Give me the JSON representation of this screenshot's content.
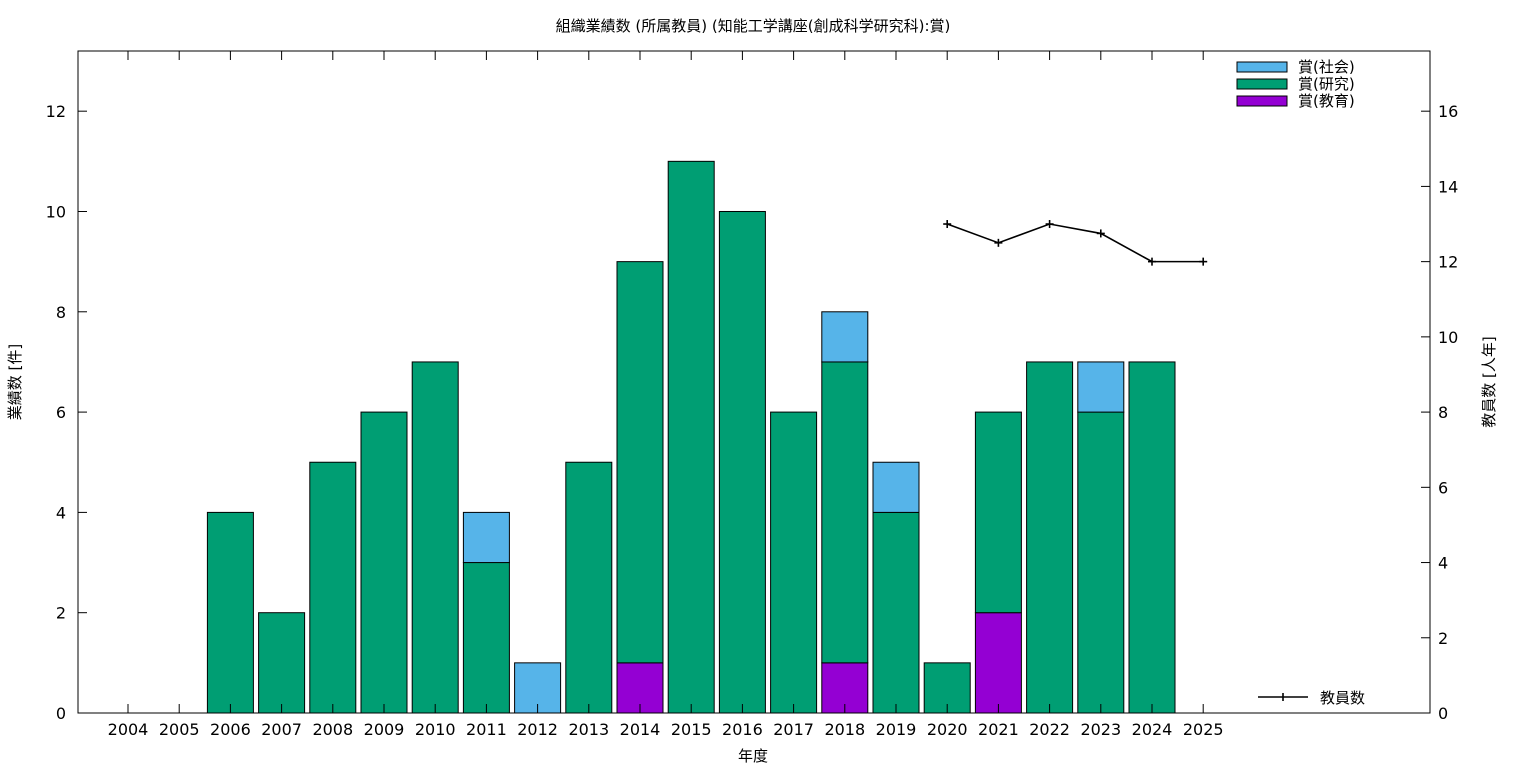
{
  "chart_data": {
    "type": "bar",
    "stacked": true,
    "title": "組織業績数 (所属教員) (知能工学講座(創成科学研究科):賞)",
    "xlabel": "年度",
    "ylabel": "業績数 [件]",
    "y2label": "教員数 [人年]",
    "ylim": [
      0,
      13.2
    ],
    "y2lim": [
      0,
      17.6
    ],
    "yticks": [
      0,
      2,
      4,
      6,
      8,
      10,
      12
    ],
    "y2ticks": [
      0,
      2,
      4,
      6,
      8,
      10,
      12,
      14,
      16
    ],
    "grid": false,
    "legend_position": "top-right",
    "categories": [
      "2004",
      "2005",
      "2006",
      "2007",
      "2008",
      "2009",
      "2010",
      "2011",
      "2012",
      "2013",
      "2014",
      "2015",
      "2016",
      "2017",
      "2018",
      "2019",
      "2020",
      "2021",
      "2022",
      "2023",
      "2024",
      "2025"
    ],
    "series": [
      {
        "name": "賞(教育)",
        "color": "#9400d3",
        "values": [
          0,
          0,
          0,
          0,
          0,
          0,
          0,
          0,
          0,
          0,
          1,
          0,
          0,
          0,
          1,
          0,
          0,
          2,
          0,
          0,
          0,
          0
        ]
      },
      {
        "name": "賞(研究)",
        "color": "#009e73",
        "values": [
          0,
          0,
          4,
          2,
          5,
          6,
          7,
          3,
          0,
          5,
          8,
          11,
          10,
          6,
          6,
          4,
          1,
          4,
          7,
          6,
          7,
          0
        ]
      },
      {
        "name": "賞(社会)",
        "color": "#56b4e9",
        "values": [
          0,
          0,
          0,
          0,
          0,
          0,
          0,
          1,
          1,
          0,
          0,
          0,
          0,
          0,
          1,
          1,
          0,
          0,
          0,
          1,
          0,
          0
        ]
      }
    ],
    "line_series": {
      "name": "教員数",
      "axis": "y2",
      "color": "#000000",
      "x": [
        "2020",
        "2021",
        "2022",
        "2023",
        "2024",
        "2025"
      ],
      "values": [
        13,
        12.5,
        13,
        12.75,
        12,
        12
      ]
    }
  }
}
